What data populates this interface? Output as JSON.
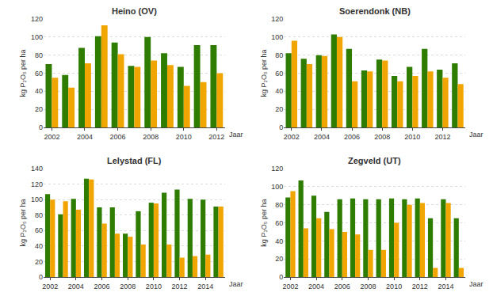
{
  "chart_data": [
    {
      "type": "bar",
      "title": "Heino (OV)",
      "categories": [
        "2002",
        null,
        "2004",
        null,
        "2006",
        null,
        "2008",
        null,
        "2010",
        null,
        "2012"
      ],
      "series": [
        {
          "color": "#2e7d00",
          "values": [
            70,
            58,
            88,
            101,
            94,
            68,
            100,
            82,
            67,
            91,
            91
          ]
        },
        {
          "color": "#f0a500",
          "values": [
            55,
            44,
            71,
            113,
            81,
            67,
            74,
            69,
            46,
            50,
            60
          ]
        }
      ],
      "xlabel": "Jaar",
      "ylabel": "kg P₂O₅ per ha",
      "ylim": [
        0,
        120
      ],
      "yticks": [
        0,
        20,
        40,
        60,
        80,
        100,
        120
      ],
      "grid": true
    },
    {
      "type": "bar",
      "title": "Soerendonk (NB)",
      "categories": [
        "2002",
        null,
        "2004",
        null,
        "2006",
        null,
        "2008",
        null,
        "2010",
        null,
        "2012",
        null
      ],
      "series": [
        {
          "color": "#2e7d00",
          "values": [
            82,
            76,
            80,
            103,
            87,
            63,
            75,
            57,
            67,
            87,
            64,
            71
          ]
        },
        {
          "color": "#f0a500",
          "values": [
            96,
            70,
            79,
            100,
            51,
            62,
            74,
            51,
            57,
            62,
            55,
            48
          ]
        }
      ],
      "xlabel": "Jaar",
      "ylabel": "kg P₂O₅ per ha",
      "ylim": [
        0,
        120
      ],
      "yticks": [
        0,
        20,
        40,
        60,
        80,
        100,
        120
      ],
      "grid": true
    },
    {
      "type": "bar",
      "title": "Lelystad (FL)",
      "categories": [
        "2002",
        null,
        "2004",
        null,
        "2006",
        null,
        "2008",
        null,
        "2010",
        null,
        "2012",
        null,
        "2014",
        null
      ],
      "series": [
        {
          "color": "#2e7d00",
          "values": [
            107,
            81,
            101,
            127,
            90,
            90,
            56,
            85,
            96,
            109,
            113,
            101,
            100,
            91
          ]
        },
        {
          "color": "#f0a500",
          "values": [
            100,
            98,
            87,
            126,
            69,
            56,
            52,
            42,
            95,
            42,
            25,
            27,
            29,
            91
          ]
        }
      ],
      "xlabel": "Jaar",
      "ylabel": "kg P₂O₅ per ha",
      "ylim": [
        0,
        140
      ],
      "yticks": [
        0,
        20,
        40,
        60,
        80,
        100,
        120,
        140
      ],
      "grid": true
    },
    {
      "type": "bar",
      "title": "Zegveld (UT)",
      "categories": [
        "2002",
        null,
        "2004",
        null,
        "2006",
        null,
        "2008",
        null,
        "2010",
        null,
        "2012",
        null,
        "2014",
        null
      ],
      "series": [
        {
          "color": "#2e7d00",
          "values": [
            88,
            107,
            90,
            72,
            86,
            87,
            86,
            86,
            87,
            86,
            87,
            65,
            86,
            65
          ]
        },
        {
          "color": "#f0a500",
          "values": [
            95,
            54,
            65,
            53,
            50,
            47,
            30,
            30,
            60,
            80,
            82,
            10,
            82,
            10
          ]
        }
      ],
      "xlabel": "Jaar",
      "ylabel": "kg P₂O₅ per ha",
      "ylim": [
        0,
        120
      ],
      "yticks": [
        0,
        20,
        40,
        60,
        80,
        100,
        120
      ],
      "grid": true
    }
  ]
}
